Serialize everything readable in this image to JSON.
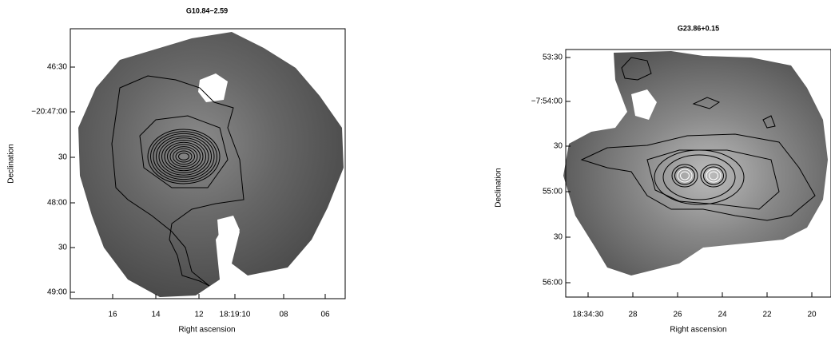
{
  "panels": [
    {
      "title": "G10.84−2.59",
      "xlabel": "Right ascension",
      "ylabel": "Declination",
      "yticks": [
        "46:30",
        "−20:47:00",
        "30",
        "48:00",
        "30",
        "49:00"
      ],
      "xticks": [
        "16",
        "14",
        "12",
        "18:19:10",
        "08",
        "06"
      ]
    },
    {
      "title": "G23.86+0.15",
      "xlabel": "Right ascension",
      "ylabel": "Declination",
      "yticks": [
        "53:30",
        "−7:54:00",
        "30",
        "55:00",
        "30",
        "56:00"
      ],
      "xticks": [
        "18:34:30",
        "28",
        "26",
        "24",
        "22",
        "20"
      ]
    }
  ]
}
